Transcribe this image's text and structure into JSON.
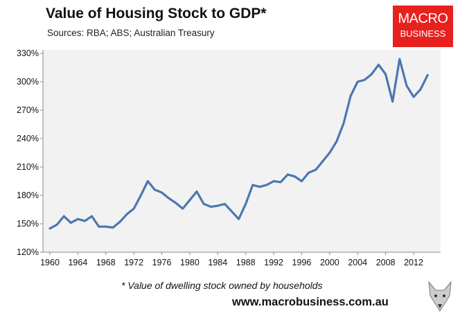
{
  "logo": {
    "line1": "MACRO",
    "line2": "BUSINESS"
  },
  "footer": {
    "footnote": "* Value of dwelling stock owned by households",
    "url": "www.macrobusiness.com.au"
  },
  "chart_data": {
    "type": "line",
    "title": "Value of Housing Stock to GDP*",
    "subtitle": "Sources: RBA; ABS; Australian Treasury",
    "xlabel": "",
    "ylabel": "",
    "ylim": [
      120,
      330
    ],
    "xlim": [
      1960,
      2014
    ],
    "yticks": [
      120,
      150,
      180,
      210,
      240,
      270,
      300,
      330
    ],
    "ytick_labels": [
      "120%",
      "150%",
      "180%",
      "210%",
      "240%",
      "270%",
      "300%",
      "330%"
    ],
    "xticks": [
      1960,
      1964,
      1968,
      1972,
      1976,
      1980,
      1984,
      1988,
      1992,
      1996,
      2000,
      2004,
      2008,
      2012
    ],
    "xtick_labels": [
      "1960",
      "1964",
      "1968",
      "1972",
      "1976",
      "1980",
      "1984",
      "1988",
      "1992",
      "1996",
      "2000",
      "2004",
      "2008",
      "2012"
    ],
    "grid": false,
    "color": "#4a78b0",
    "series": [
      {
        "name": "Value of Housing Stock to GDP",
        "x": [
          1960,
          1961,
          1962,
          1963,
          1964,
          1965,
          1966,
          1967,
          1968,
          1969,
          1970,
          1971,
          1972,
          1973,
          1974,
          1975,
          1976,
          1977,
          1978,
          1979,
          1980,
          1981,
          1982,
          1983,
          1984,
          1985,
          1986,
          1987,
          1988,
          1989,
          1990,
          1991,
          1992,
          1993,
          1994,
          1995,
          1996,
          1997,
          1998,
          1999,
          2000,
          2001,
          2002,
          2003,
          2004,
          2005,
          2006,
          2007,
          2008,
          2009,
          2010,
          2011,
          2012,
          2013,
          2014
        ],
        "values": [
          145,
          149,
          158,
          151,
          155,
          153,
          158,
          147,
          147,
          146,
          152,
          160,
          166,
          180,
          195,
          186,
          183,
          177,
          172,
          166,
          175,
          184,
          171,
          168,
          169,
          171,
          163,
          155,
          171,
          191,
          189,
          191,
          195,
          194,
          202,
          200,
          195,
          204,
          207,
          216,
          225,
          237,
          256,
          285,
          300,
          302,
          308,
          318,
          308,
          279,
          324,
          296,
          284,
          292,
          307
        ]
      }
    ]
  }
}
